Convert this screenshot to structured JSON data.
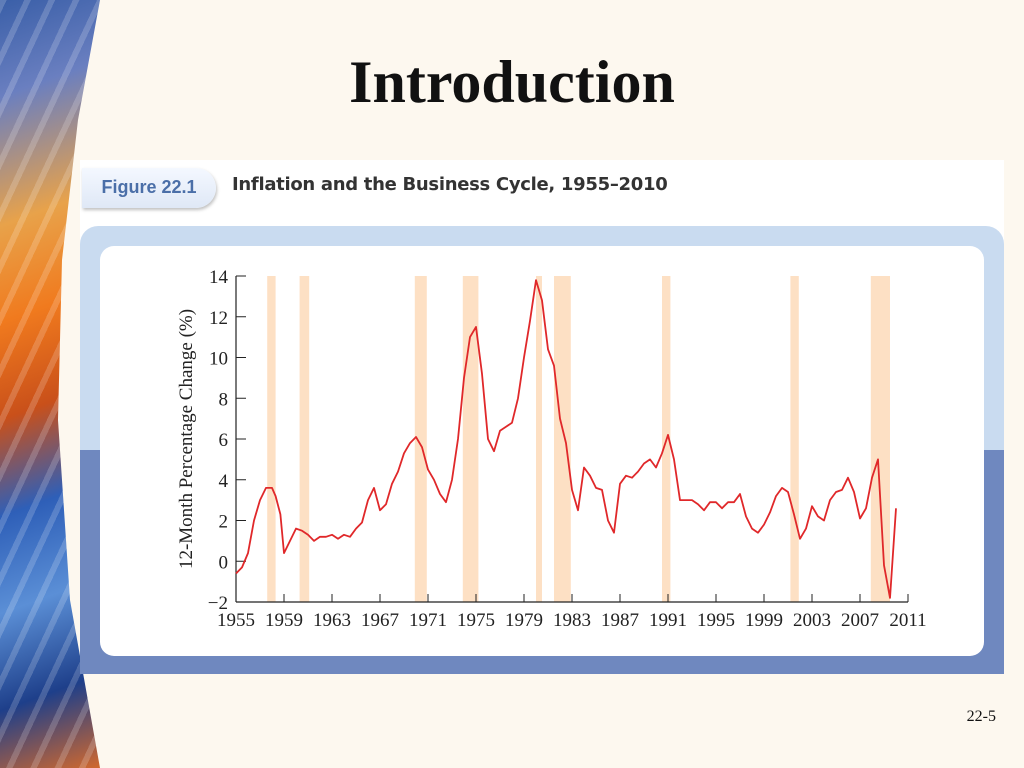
{
  "slide": {
    "title": "Introduction",
    "page_number": "22-5"
  },
  "figure": {
    "label": "Figure 22.1",
    "caption": "Inflation and the Business Cycle, 1955–2010"
  },
  "colors": {
    "line": "#e0282a",
    "recession": "#fde0c4",
    "axis": "#222222"
  },
  "chart_data": {
    "type": "line",
    "title": "",
    "xlabel": "",
    "ylabel": "12-Month Percentage Change (%)",
    "xlim": [
      1955,
      2011
    ],
    "ylim": [
      -2,
      14
    ],
    "x_ticks": [
      1955,
      1959,
      1963,
      1967,
      1971,
      1975,
      1979,
      1983,
      1987,
      1991,
      1995,
      1999,
      2003,
      2007,
      2011
    ],
    "y_ticks": [
      -2,
      0,
      2,
      4,
      6,
      8,
      10,
      12,
      14
    ],
    "recessions": [
      [
        1957.6,
        1958.3
      ],
      [
        1960.3,
        1961.1
      ],
      [
        1969.9,
        1970.9
      ],
      [
        1973.9,
        1975.2
      ],
      [
        1980.0,
        1980.5
      ],
      [
        1981.5,
        1982.9
      ],
      [
        1990.5,
        1991.2
      ],
      [
        2001.2,
        2001.9
      ],
      [
        2007.9,
        2009.5
      ]
    ],
    "series": [
      {
        "name": "",
        "x": [
          1955.0,
          1955.5,
          1956.0,
          1956.5,
          1957.0,
          1957.5,
          1958.0,
          1958.3,
          1958.7,
          1959.0,
          1959.5,
          1960.0,
          1960.5,
          1961.0,
          1961.5,
          1962.0,
          1962.5,
          1963.0,
          1963.5,
          1964.0,
          1964.5,
          1965.0,
          1965.5,
          1966.0,
          1966.5,
          1967.0,
          1967.5,
          1968.0,
          1968.5,
          1969.0,
          1969.5,
          1970.0,
          1970.5,
          1971.0,
          1971.5,
          1972.0,
          1972.5,
          1973.0,
          1973.5,
          1974.0,
          1974.5,
          1975.0,
          1975.5,
          1976.0,
          1976.5,
          1977.0,
          1977.5,
          1978.0,
          1978.5,
          1979.0,
          1979.5,
          1980.0,
          1980.5,
          1981.0,
          1981.5,
          1982.0,
          1982.5,
          1983.0,
          1983.5,
          1984.0,
          1984.5,
          1985.0,
          1985.5,
          1986.0,
          1986.5,
          1987.0,
          1987.5,
          1988.0,
          1988.5,
          1989.0,
          1989.5,
          1990.0,
          1990.5,
          1991.0,
          1991.5,
          1992.0,
          1992.5,
          1993.0,
          1993.5,
          1994.0,
          1994.5,
          1995.0,
          1995.5,
          1996.0,
          1996.5,
          1997.0,
          1997.5,
          1998.0,
          1998.5,
          1999.0,
          1999.5,
          2000.0,
          2000.5,
          2001.0,
          2001.5,
          2002.0,
          2002.5,
          2003.0,
          2003.5,
          2004.0,
          2004.5,
          2005.0,
          2005.5,
          2006.0,
          2006.5,
          2007.0,
          2007.5,
          2008.0,
          2008.5,
          2009.0,
          2009.5,
          2010.0
        ],
        "values": [
          -0.6,
          -0.3,
          0.4,
          2.0,
          3.0,
          3.6,
          3.6,
          3.2,
          2.3,
          0.4,
          1.0,
          1.6,
          1.5,
          1.3,
          1.0,
          1.2,
          1.2,
          1.3,
          1.1,
          1.3,
          1.2,
          1.6,
          1.9,
          3.0,
          3.6,
          2.5,
          2.8,
          3.8,
          4.4,
          5.3,
          5.8,
          6.1,
          5.6,
          4.5,
          4.0,
          3.3,
          2.9,
          4.0,
          6.0,
          9.0,
          11.0,
          11.5,
          9.2,
          6.0,
          5.4,
          6.4,
          6.6,
          6.8,
          8.0,
          10.0,
          11.8,
          13.8,
          12.8,
          10.4,
          9.6,
          7.0,
          5.8,
          3.5,
          2.5,
          4.6,
          4.2,
          3.6,
          3.5,
          2.0,
          1.4,
          3.8,
          4.2,
          4.1,
          4.4,
          4.8,
          5.0,
          4.6,
          5.3,
          6.2,
          5.0,
          3.0,
          3.0,
          3.0,
          2.8,
          2.5,
          2.9,
          2.9,
          2.6,
          2.9,
          2.9,
          3.3,
          2.2,
          1.6,
          1.4,
          1.8,
          2.4,
          3.2,
          3.6,
          3.4,
          2.3,
          1.1,
          1.6,
          2.7,
          2.2,
          2.0,
          3.0,
          3.4,
          3.5,
          4.1,
          3.4,
          2.1,
          2.6,
          4.1,
          5.0,
          -0.2,
          -1.8,
          2.6
        ]
      }
    ],
    "grid": false
  }
}
